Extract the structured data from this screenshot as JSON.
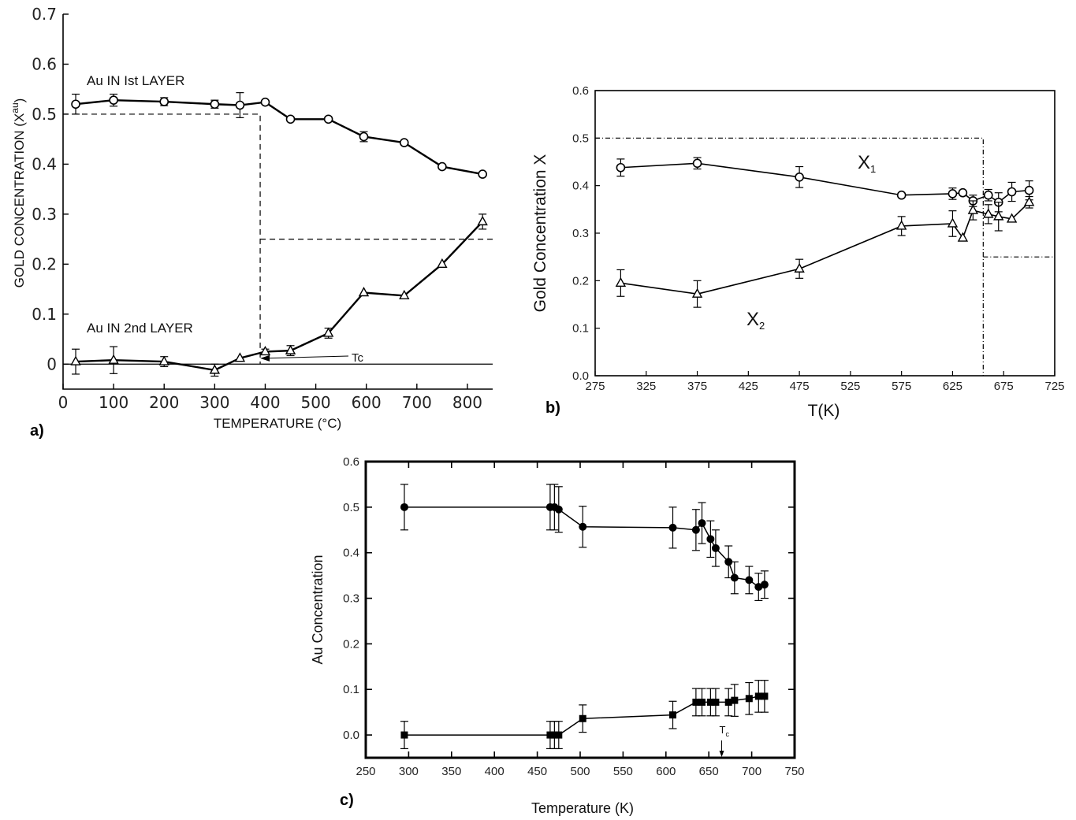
{
  "panels": {
    "a": "a)",
    "b": "b)",
    "c": "c)"
  },
  "chart_data": [
    {
      "type": "line",
      "xlabel": "TEMPERATURE (°C)",
      "ylabel": "GOLD CONCENTRATION (X",
      "ylabel_sup": "au",
      "ylabel_close": ")",
      "xlim": [
        0,
        850
      ],
      "ylim": [
        -0.05,
        0.7
      ],
      "xticks": [
        "0",
        "100",
        "200",
        "300",
        "400",
        "500",
        "600",
        "700",
        "800"
      ],
      "yticks": [
        "0",
        "0.1",
        "0.2",
        "0.3",
        "0.4",
        "0.5",
        "0.6",
        "0.7"
      ],
      "series": [
        {
          "name": "Au IN Ist LAYER",
          "marker": "circle",
          "points": [
            {
              "x": 25,
              "y": 0.52,
              "err": 0.02
            },
            {
              "x": 100,
              "y": 0.528,
              "err": 0.012
            },
            {
              "x": 200,
              "y": 0.525,
              "err": 0.008
            },
            {
              "x": 300,
              "y": 0.52,
              "err": 0.008
            },
            {
              "x": 350,
              "y": 0.518,
              "err": 0.025
            },
            {
              "x": 400,
              "y": 0.524,
              "err": 0
            },
            {
              "x": 450,
              "y": 0.49,
              "err": 0
            },
            {
              "x": 525,
              "y": 0.49,
              "err": 0
            },
            {
              "x": 595,
              "y": 0.455,
              "err": 0.01
            },
            {
              "x": 675,
              "y": 0.443,
              "err": 0
            },
            {
              "x": 750,
              "y": 0.395,
              "err": 0
            },
            {
              "x": 830,
              "y": 0.38,
              "err": 0
            }
          ]
        },
        {
          "name": "Au IN 2nd LAYER",
          "marker": "triangle",
          "points": [
            {
              "x": 25,
              "y": 0.005,
              "err": 0.025
            },
            {
              "x": 100,
              "y": 0.008,
              "err": 0.027
            },
            {
              "x": 200,
              "y": 0.005,
              "err": 0.01
            },
            {
              "x": 300,
              "y": -0.012,
              "err": 0.012
            },
            {
              "x": 350,
              "y": 0.012,
              "err": 0
            },
            {
              "x": 400,
              "y": 0.025,
              "err": 0.005
            },
            {
              "x": 450,
              "y": 0.027,
              "err": 0.01
            },
            {
              "x": 525,
              "y": 0.062,
              "err": 0.01
            },
            {
              "x": 595,
              "y": 0.143,
              "err": 0
            },
            {
              "x": 675,
              "y": 0.137,
              "err": 0
            },
            {
              "x": 750,
              "y": 0.2,
              "err": 0
            },
            {
              "x": 830,
              "y": 0.285,
              "err": 0.015
            }
          ]
        }
      ],
      "dashed_reference": [
        [
          0,
          0.5
        ],
        [
          390,
          0.5
        ],
        [
          390,
          0
        ],
        [
          390,
          0.25
        ],
        [
          850,
          0.25
        ]
      ],
      "annotation": "Tc",
      "annotation_at": {
        "x": 390,
        "y": 0.01
      }
    },
    {
      "type": "line",
      "xlabel": "T(K)",
      "ylabel": "Gold Concentration X",
      "xlim": [
        275,
        725
      ],
      "ylim": [
        0,
        0.6
      ],
      "xticks": [
        "275",
        "325",
        "375",
        "425",
        "475",
        "525",
        "575",
        "625",
        "675",
        "725"
      ],
      "yticks": [
        "0.0",
        "0.1",
        "0.2",
        "0.3",
        "0.4",
        "0.5",
        "0.6"
      ],
      "series": [
        {
          "name": "X1",
          "name_main": "X",
          "name_sub": "1",
          "marker": "circle",
          "points": [
            {
              "x": 300,
              "y": 0.438,
              "err": 0.018
            },
            {
              "x": 375,
              "y": 0.447,
              "err": 0.012
            },
            {
              "x": 475,
              "y": 0.418,
              "err": 0.022
            },
            {
              "x": 575,
              "y": 0.38,
              "err": 0
            },
            {
              "x": 625,
              "y": 0.383,
              "err": 0.012
            },
            {
              "x": 635,
              "y": 0.385,
              "err": 0
            },
            {
              "x": 645,
              "y": 0.368,
              "err": 0.012
            },
            {
              "x": 660,
              "y": 0.38,
              "err": 0.012
            },
            {
              "x": 670,
              "y": 0.365,
              "err": 0.02
            },
            {
              "x": 683,
              "y": 0.387,
              "err": 0.02
            },
            {
              "x": 700,
              "y": 0.39,
              "err": 0.02
            }
          ]
        },
        {
          "name": "X2",
          "name_main": "X",
          "name_sub": "2",
          "marker": "triangle",
          "points": [
            {
              "x": 300,
              "y": 0.195,
              "err": 0.028
            },
            {
              "x": 375,
              "y": 0.172,
              "err": 0.028
            },
            {
              "x": 475,
              "y": 0.225,
              "err": 0.02
            },
            {
              "x": 575,
              "y": 0.315,
              "err": 0.02
            },
            {
              "x": 625,
              "y": 0.32,
              "err": 0.027
            },
            {
              "x": 635,
              "y": 0.29,
              "err": 0
            },
            {
              "x": 645,
              "y": 0.348,
              "err": 0.02
            },
            {
              "x": 660,
              "y": 0.34,
              "err": 0.02
            },
            {
              "x": 670,
              "y": 0.335,
              "err": 0.03
            },
            {
              "x": 683,
              "y": 0.33,
              "err": 0
            },
            {
              "x": 700,
              "y": 0.365,
              "err": 0.012
            }
          ]
        }
      ],
      "dashed_reference": [
        [
          275,
          0.5
        ],
        [
          655,
          0.5
        ],
        [
          655,
          0
        ],
        [
          655,
          0.25
        ],
        [
          725,
          0.25
        ]
      ]
    },
    {
      "type": "line",
      "xlabel": "Temperature (K)",
      "ylabel": "Au Concentration",
      "xlim": [
        250,
        750
      ],
      "ylim": [
        -0.05,
        0.6
      ],
      "xticks": [
        "250",
        "300",
        "350",
        "400",
        "450",
        "500",
        "550",
        "600",
        "650",
        "700",
        "750"
      ],
      "yticks": [
        "0.0",
        "0.1",
        "0.2",
        "0.3",
        "0.4",
        "0.5",
        "0.6"
      ],
      "series": [
        {
          "marker": "filled-circle",
          "points": [
            {
              "x": 295,
              "y": 0.5,
              "err": 0.05
            },
            {
              "x": 465,
              "y": 0.5,
              "err": 0.05
            },
            {
              "x": 470,
              "y": 0.5,
              "err": 0.05
            },
            {
              "x": 475,
              "y": 0.495,
              "err": 0.05
            },
            {
              "x": 503,
              "y": 0.457,
              "err": 0.045
            },
            {
              "x": 608,
              "y": 0.455,
              "err": 0.045
            },
            {
              "x": 635,
              "y": 0.45,
              "err": 0.045
            },
            {
              "x": 642,
              "y": 0.465,
              "err": 0.045
            },
            {
              "x": 652,
              "y": 0.43,
              "err": 0.04
            },
            {
              "x": 658,
              "y": 0.41,
              "err": 0.04
            },
            {
              "x": 673,
              "y": 0.38,
              "err": 0.035
            },
            {
              "x": 680,
              "y": 0.345,
              "err": 0.035
            },
            {
              "x": 697,
              "y": 0.34,
              "err": 0.03
            },
            {
              "x": 708,
              "y": 0.325,
              "err": 0.03
            },
            {
              "x": 715,
              "y": 0.33,
              "err": 0.03
            }
          ]
        },
        {
          "marker": "filled-square",
          "points": [
            {
              "x": 295,
              "y": 0.0,
              "err": 0.03
            },
            {
              "x": 465,
              "y": 0.0,
              "err": 0.03
            },
            {
              "x": 470,
              "y": 0.0,
              "err": 0.03
            },
            {
              "x": 475,
              "y": 0.0,
              "err": 0.03
            },
            {
              "x": 503,
              "y": 0.036,
              "err": 0.03
            },
            {
              "x": 608,
              "y": 0.044,
              "err": 0.03
            },
            {
              "x": 635,
              "y": 0.072,
              "err": 0.03
            },
            {
              "x": 642,
              "y": 0.072,
              "err": 0.03
            },
            {
              "x": 652,
              "y": 0.072,
              "err": 0.03
            },
            {
              "x": 658,
              "y": 0.072,
              "err": 0.03
            },
            {
              "x": 673,
              "y": 0.072,
              "err": 0.03
            },
            {
              "x": 680,
              "y": 0.076,
              "err": 0.035
            },
            {
              "x": 697,
              "y": 0.08,
              "err": 0.035
            },
            {
              "x": 708,
              "y": 0.085,
              "err": 0.035
            },
            {
              "x": 715,
              "y": 0.085,
              "err": 0.035
            }
          ]
        }
      ],
      "annotation": "T",
      "annotation_sub": "c",
      "annotation_at": {
        "x": 665,
        "y": -0.005
      }
    }
  ]
}
